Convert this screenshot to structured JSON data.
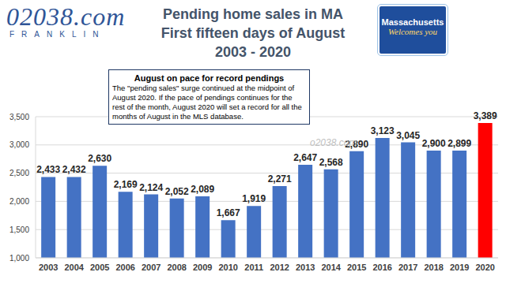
{
  "chart_data": {
    "type": "bar",
    "title": "Pending home sales in MA",
    "subtitle": [
      "First fifteen days of August",
      "2003 - 2020"
    ],
    "logo": {
      "text": "02038.com",
      "subtext": "FRANKLIN"
    },
    "sign": {
      "text": "Massachusetts",
      "subtext": "Welcomes you"
    },
    "annotation": {
      "title": "August on pace for record pendings",
      "text": "The \"pending sales\" surge continued at the midpoint of August 2020. If the pace of pendings continues for the rest of the month, August 2020 will set a record for all the months of August in the MLS database."
    },
    "watermark": "o2038.com",
    "categories": [
      "2003",
      "2004",
      "2005",
      "2006",
      "2007",
      "2008",
      "2009",
      "2010",
      "2011",
      "2012",
      "2013",
      "2014",
      "2015",
      "2016",
      "2017",
      "2018",
      "2019",
      "2020"
    ],
    "values": [
      2433,
      2432,
      2630,
      2169,
      2124,
      2052,
      2089,
      1667,
      1919,
      2271,
      2647,
      2568,
      2890,
      3123,
      3045,
      2900,
      2899,
      3389
    ],
    "value_labels": [
      "2,433",
      "2,432",
      "2,630",
      "2,169",
      "2,124",
      "2,052",
      "2,089",
      "1,667",
      "1,919",
      "2,271",
      "2,647",
      "2,568",
      "2,890",
      "3,123",
      "3,045",
      "2,900",
      "2,899",
      "3,389"
    ],
    "colors": [
      "#4472c4",
      "#4472c4",
      "#4472c4",
      "#4472c4",
      "#4472c4",
      "#4472c4",
      "#4472c4",
      "#4472c4",
      "#4472c4",
      "#4472c4",
      "#4472c4",
      "#4472c4",
      "#4472c4",
      "#4472c4",
      "#4472c4",
      "#4472c4",
      "#4472c4",
      "#ff0000"
    ],
    "ylim": [
      1000,
      3500
    ],
    "yticks": [
      {
        "value": 1000,
        "label": "1,000"
      },
      {
        "value": 1500,
        "label": "1,500"
      },
      {
        "value": 2000,
        "label": "2,000"
      },
      {
        "value": 2500,
        "label": "2,500"
      },
      {
        "value": 3000,
        "label": "3,000"
      },
      {
        "value": 3500,
        "label": "3,500"
      }
    ],
    "grid": true,
    "data_labels": true
  }
}
